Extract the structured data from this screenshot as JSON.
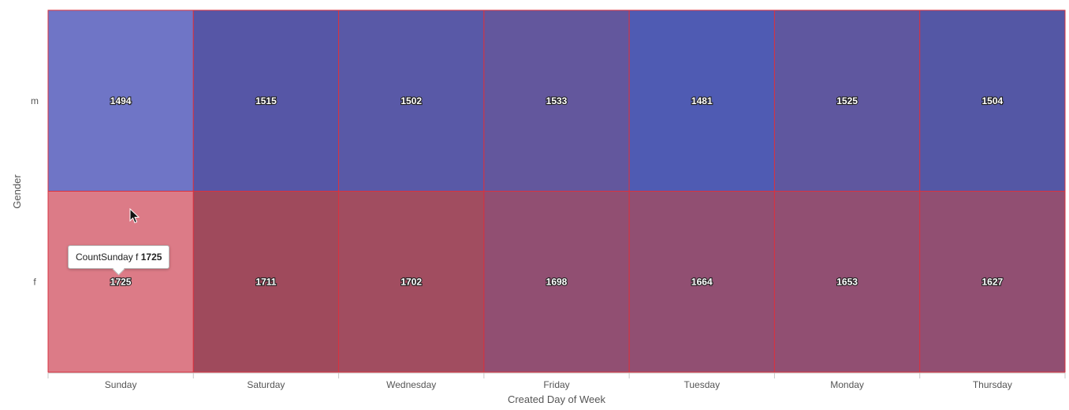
{
  "chart_data": {
    "type": "heatmap",
    "xlabel": "Created Day of Week",
    "ylabel": "Gender",
    "x_categories": [
      "Sunday",
      "Saturday",
      "Wednesday",
      "Friday",
      "Tuesday",
      "Monday",
      "Thursday"
    ],
    "y_categories": [
      "m",
      "f"
    ],
    "values": [
      [
        1494,
        1515,
        1502,
        1533,
        1481,
        1525,
        1504
      ],
      [
        1725,
        1711,
        1702,
        1698,
        1664,
        1653,
        1627
      ]
    ],
    "cell_colors": [
      [
        "#6f75c6",
        "#5656a6",
        "#5959a7",
        "#63579d",
        "#4f5bb3",
        "#5f579f",
        "#5457a5"
      ],
      [
        "#dc7b87",
        "#9f4a5c",
        "#a14d60",
        "#914f72",
        "#914f72",
        "#914f72",
        "#914f72"
      ]
    ],
    "grid_border_color": "#d9323f",
    "grid": false,
    "legend": "none"
  },
  "tooltip": {
    "prefix": "CountSunday f",
    "value": "1725"
  }
}
